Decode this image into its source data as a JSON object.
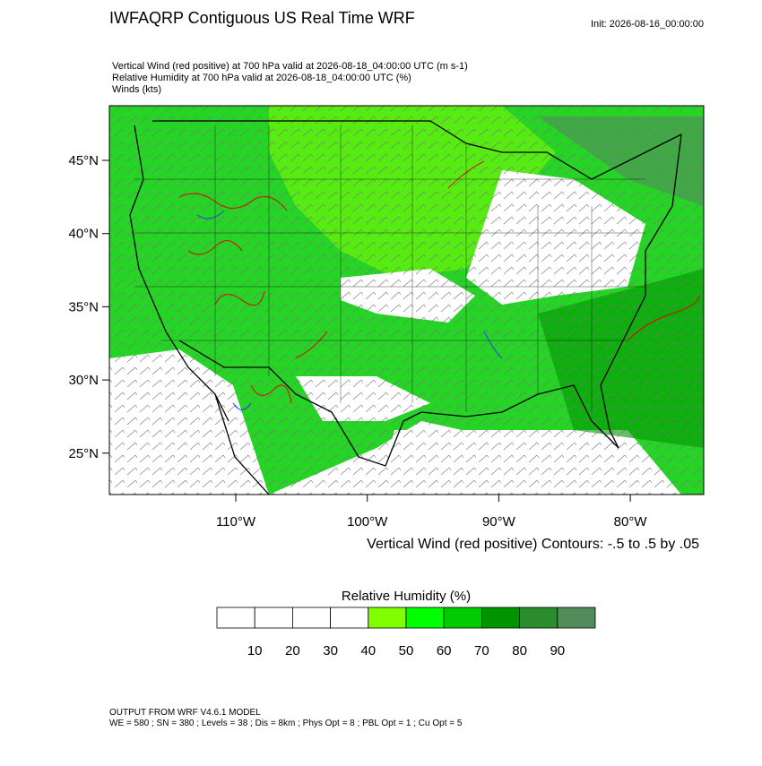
{
  "header": {
    "title": "IWFAQRP Contiguous US Real Time WRF",
    "init": "Init: 2026-08-16_00:00:00",
    "fields": [
      "Vertical Wind (red positive) at 700 hPa valid at 2026-08-18_04:00:00 UTC   (m s-1)",
      "Relative Humidity at 700 hPa valid at 2026-08-18_04:00:00 UTC   (%)",
      "Winds   (kts)"
    ]
  },
  "map": {
    "lat_labels": [
      "45°N",
      "40°N",
      "35°N",
      "30°N",
      "25°N"
    ],
    "lon_labels": [
      "110°W",
      "100°W",
      "90°W",
      "80°W"
    ],
    "contour_note": "Vertical Wind (red positive) Contours: -.5 to .5 by .05"
  },
  "colorbar": {
    "title": "Relative Humidity  (%)",
    "colors": [
      "#ffffff",
      "#ffffff",
      "#ffffff",
      "#ffffff",
      "#80ff00",
      "#00ff00",
      "#00cc00",
      "#009400",
      "#2a8c2a",
      "#528c5a"
    ],
    "labels": [
      "10",
      "20",
      "30",
      "40",
      "50",
      "60",
      "70",
      "80",
      "90"
    ]
  },
  "footer": {
    "lines": [
      "OUTPUT FROM WRF V4.6.1 MODEL",
      "WE = 580 ; SN = 380 ; Levels = 38 ; Dis = 8km ; Phys Opt = 8 ; PBL Opt = 1 ; Cu Opt = 5"
    ]
  }
}
